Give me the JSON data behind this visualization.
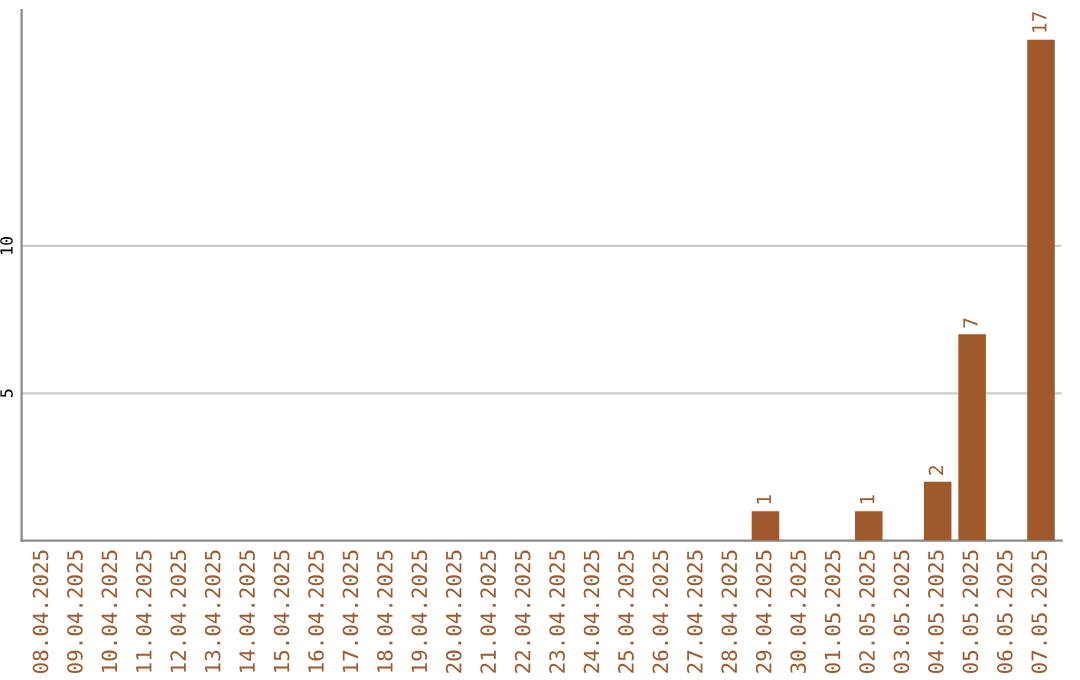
{
  "chart_data": {
    "type": "bar",
    "categories": [
      "08.04.2025",
      "09.04.2025",
      "10.04.2025",
      "11.04.2025",
      "12.04.2025",
      "13.04.2025",
      "14.04.2025",
      "15.04.2025",
      "16.04.2025",
      "17.04.2025",
      "18.04.2025",
      "19.04.2025",
      "20.04.2025",
      "21.04.2025",
      "22.04.2025",
      "23.04.2025",
      "24.04.2025",
      "25.04.2025",
      "26.04.2025",
      "27.04.2025",
      "28.04.2025",
      "29.04.2025",
      "30.04.2025",
      "01.05.2025",
      "02.05.2025",
      "03.05.2025",
      "04.05.2025",
      "05.05.2025",
      "06.05.2025",
      "07.05.2025"
    ],
    "values": [
      0,
      0,
      0,
      0,
      0,
      0,
      0,
      0,
      0,
      0,
      0,
      0,
      0,
      0,
      0,
      0,
      0,
      0,
      0,
      0,
      0,
      1,
      0,
      0,
      1,
      0,
      2,
      7,
      0,
      17
    ],
    "value_labels": [
      null,
      null,
      null,
      null,
      null,
      null,
      null,
      null,
      null,
      null,
      null,
      null,
      null,
      null,
      null,
      null,
      null,
      null,
      null,
      null,
      null,
      "1",
      null,
      null,
      "1",
      null,
      "2",
      "7",
      null,
      "17"
    ],
    "color": "#a0592a",
    "ylim": [
      0,
      18
    ],
    "yticks": [
      5,
      10
    ],
    "grid": "y"
  }
}
